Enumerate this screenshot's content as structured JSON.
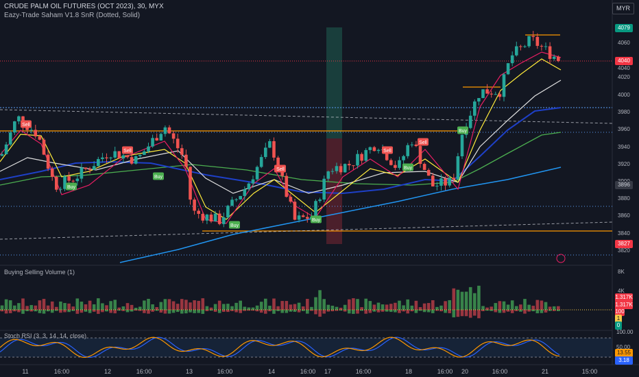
{
  "header": {
    "title": "CRUDE PALM OIL FUTURES (OCT 2023), 30, MYX",
    "indicator": "Eazy-Trade Saham V1.8 SnR (Dotted, Solid)",
    "currency": "MYR"
  },
  "price_axis": {
    "ticks": [
      "4060",
      "4040",
      "4020",
      "4000",
      "3980",
      "3960",
      "3940",
      "3920",
      "3900",
      "3880",
      "3860",
      "3840",
      "3820"
    ],
    "labels": [
      {
        "text": "4079",
        "color": "#089981"
      },
      {
        "text": "4040",
        "color": "#f23645"
      },
      {
        "text": "3896",
        "color": "#787b86"
      },
      {
        "text": "3827",
        "color": "#f23645"
      }
    ]
  },
  "volume_pane": {
    "title": "Buying Selling Volume (1)",
    "ticks": [
      "8K",
      "4K"
    ],
    "labels": [
      {
        "text": "1.317K",
        "color": "#f23645"
      },
      {
        "text": "1.317K",
        "color": "#f23645"
      },
      {
        "text": "100",
        "color": "#f23645"
      },
      {
        "text": "1",
        "color": "#f7c948"
      },
      {
        "text": "0",
        "color": "#089981"
      }
    ]
  },
  "rsi_pane": {
    "title": "Stoch RSI (3, 3, 14, 14, close)",
    "ticks": [
      "100.00",
      "50.00"
    ],
    "labels": [
      {
        "text": "13.55",
        "color": "#ff9800"
      },
      {
        "text": "3.18",
        "color": "#2962ff"
      }
    ]
  },
  "time_axis": [
    "11",
    "16:00",
    "12",
    "16:00",
    "13",
    "16:00",
    "14",
    "16:00",
    "17",
    "16:00",
    "18",
    "16:00",
    "20",
    "16:00",
    "21",
    "15:00"
  ],
  "signals": [
    {
      "text": "Sell",
      "type": "sell"
    },
    {
      "text": "Buy",
      "type": "buy"
    },
    {
      "text": "Sell",
      "type": "sell"
    },
    {
      "text": "Buy",
      "type": "buy"
    },
    {
      "text": "Sell",
      "type": "sell"
    },
    {
      "text": "Buy",
      "type": "buy"
    },
    {
      "text": "Sell",
      "type": "sell"
    },
    {
      "text": "Buy",
      "type": "buy"
    },
    {
      "text": "Sell",
      "type": "sell"
    },
    {
      "text": "Buy",
      "type": "buy"
    },
    {
      "text": "Sell",
      "type": "sell"
    },
    {
      "text": "Buy",
      "type": "buy"
    }
  ],
  "colors": {
    "background": "#131722",
    "up": "#26a69a",
    "down": "#ef5350",
    "support": "#ff9800",
    "dotted": "#2962ff"
  }
}
